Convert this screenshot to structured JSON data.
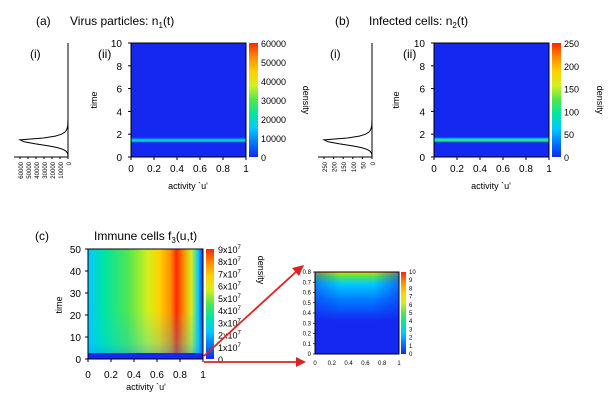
{
  "colors": {
    "scale": [
      "#1428f0",
      "#0078ff",
      "#00c8ff",
      "#00e6a0",
      "#50e650",
      "#d2f01e",
      "#ffd200",
      "#ff8c00",
      "#ff2800"
    ]
  },
  "chart_data": [
    {
      "id": "a",
      "panel_label": "(a)",
      "title_text": "Virus particles: n",
      "title_sub": "1",
      "title_tail": "(t)",
      "sub_left": "(i)",
      "sub_right": "(ii)",
      "type": "heatmap",
      "xlabel": "activity `u'",
      "ylabel": "time",
      "colorbar_label": "density",
      "x_ticks": [
        0,
        0.2,
        0.4,
        0.6,
        0.8,
        1
      ],
      "y_ticks": [
        0,
        2,
        4,
        6,
        8,
        10
      ],
      "xlim": [
        0,
        1
      ],
      "ylim": [
        0,
        10
      ],
      "colorbar_ticks": [
        "0",
        "10000",
        "20000",
        "30000",
        "40000",
        "50000",
        "60000"
      ],
      "colorbar_range": [
        0,
        60000
      ],
      "band": {
        "t_center": 1.5,
        "t_width": 0.25,
        "peak_color_index": 3
      },
      "profile_ticks": [
        "60000",
        "50000",
        "40000",
        "30000",
        "20000",
        "10000",
        "0"
      ],
      "profile_peak_time": 1.5
    },
    {
      "id": "b",
      "panel_label": "(b)",
      "title_text": "Infected cells: n",
      "title_sub": "2",
      "title_tail": "(t)",
      "sub_left": "(i)",
      "sub_right": "(ii)",
      "type": "heatmap",
      "xlabel": "activity `u'",
      "ylabel": "time",
      "colorbar_label": "density",
      "x_ticks": [
        0,
        0.2,
        0.4,
        0.6,
        0.8,
        1
      ],
      "y_ticks": [
        0,
        2,
        4,
        6,
        8,
        10
      ],
      "xlim": [
        0,
        1
      ],
      "ylim": [
        0,
        10
      ],
      "colorbar_ticks": [
        "0",
        "50",
        "100",
        "150",
        "200",
        "250"
      ],
      "colorbar_range": [
        0,
        250
      ],
      "band": {
        "t_center": 1.5,
        "t_width": 0.25,
        "peak_color_index": 4
      },
      "profile_ticks": [
        "250",
        "200",
        "150",
        "100",
        "50",
        "0"
      ],
      "profile_peak_time": 1.5
    },
    {
      "id": "c",
      "panel_label": "(c)",
      "title_text": "Immune cells f",
      "title_sub": "3",
      "title_tail": "(u,t)",
      "type": "heatmap",
      "xlabel": "activity `u'",
      "ylabel": "time",
      "colorbar_label": "density",
      "x_ticks": [
        0,
        0.2,
        0.4,
        0.6,
        0.8,
        1
      ],
      "y_ticks": [
        0,
        10,
        20,
        30,
        40,
        50
      ],
      "xlim": [
        0,
        1
      ],
      "ylim": [
        0,
        50
      ],
      "colorbar_ticks": [
        {
          "mant": "0",
          "exp": ""
        },
        {
          "mant": "1x10",
          "exp": "7"
        },
        {
          "mant": "2x10",
          "exp": "7"
        },
        {
          "mant": "3x10",
          "exp": "7"
        },
        {
          "mant": "4x10",
          "exp": "7"
        },
        {
          "mant": "5x10",
          "exp": "7"
        },
        {
          "mant": "6x10",
          "exp": "7"
        },
        {
          "mant": "7x10",
          "exp": "7"
        },
        {
          "mant": "8x10",
          "exp": "7"
        },
        {
          "mant": "9x10",
          "exp": "7"
        }
      ],
      "colorbar_range": [
        0,
        90000000
      ],
      "peak_u": 0.75,
      "peak_density": 85000000
    },
    {
      "id": "c-inset",
      "type": "heatmap",
      "note": "zoom of panel (c), t in [0, 0.8]",
      "x_ticks": [
        "0",
        "0.2",
        "0.4",
        "0.6",
        "0.8",
        "1"
      ],
      "y_ticks": [
        "0",
        "0.1",
        "0.2",
        "0.3",
        "0.4",
        "0.5",
        "0.6",
        "0.7",
        "0.8"
      ],
      "xlim": [
        0,
        1
      ],
      "ylim": [
        0,
        0.8
      ],
      "colorbar_ticks": [
        "0",
        "1",
        "2",
        "3",
        "4",
        "5",
        "6",
        "7",
        "8",
        "9",
        "10"
      ],
      "colorbar_range": [
        0,
        10
      ]
    }
  ]
}
